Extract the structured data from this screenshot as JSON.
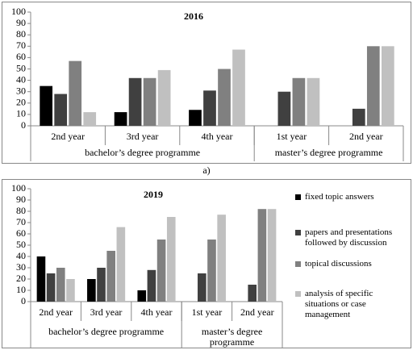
{
  "chart_data": [
    {
      "type": "bar",
      "title": "2016",
      "categories": [
        "2nd year",
        "3rd year",
        "4th year",
        "1st year",
        "2nd year"
      ],
      "groups": [
        "bachelor’s degree programme",
        "master’s degree programme"
      ],
      "series": [
        {
          "color": "#000000",
          "values": [
            35,
            12,
            14,
            0,
            0
          ]
        },
        {
          "color": "#404040",
          "values": [
            28,
            42,
            31,
            30,
            15
          ]
        },
        {
          "color": "#808080",
          "values": [
            57,
            42,
            50,
            42,
            70
          ]
        },
        {
          "color": "#c0c0c0",
          "values": [
            12,
            49,
            67,
            42,
            70
          ]
        }
      ],
      "ylim": [
        0,
        100
      ],
      "yticks": [
        0,
        10,
        20,
        30,
        40,
        50,
        60,
        70,
        80,
        90,
        100
      ]
    },
    {
      "type": "bar",
      "title": "2019",
      "categories": [
        "2nd year",
        "3rd year",
        "4th year",
        "1st year",
        "2nd year"
      ],
      "groups": [
        "bachelor’s degree programme",
        "master’s degree programme"
      ],
      "series": [
        {
          "name": "fixed topic answers",
          "color": "#000000",
          "values": [
            40,
            20,
            10,
            0,
            0
          ]
        },
        {
          "name": "papers and presentations followed by discussion",
          "color": "#404040",
          "values": [
            25,
            30,
            28,
            25,
            15
          ]
        },
        {
          "name": "topical discussions",
          "color": "#808080",
          "values": [
            30,
            45,
            55,
            55,
            82
          ]
        },
        {
          "name": "analysis of specific situations or case management",
          "color": "#c0c0c0",
          "values": [
            20,
            66,
            75,
            77,
            82
          ]
        }
      ],
      "ylim": [
        0,
        100
      ],
      "yticks": [
        0,
        10,
        20,
        30,
        40,
        50,
        60,
        70,
        80,
        90,
        100
      ],
      "legend": "right"
    }
  ],
  "caption": "a)"
}
